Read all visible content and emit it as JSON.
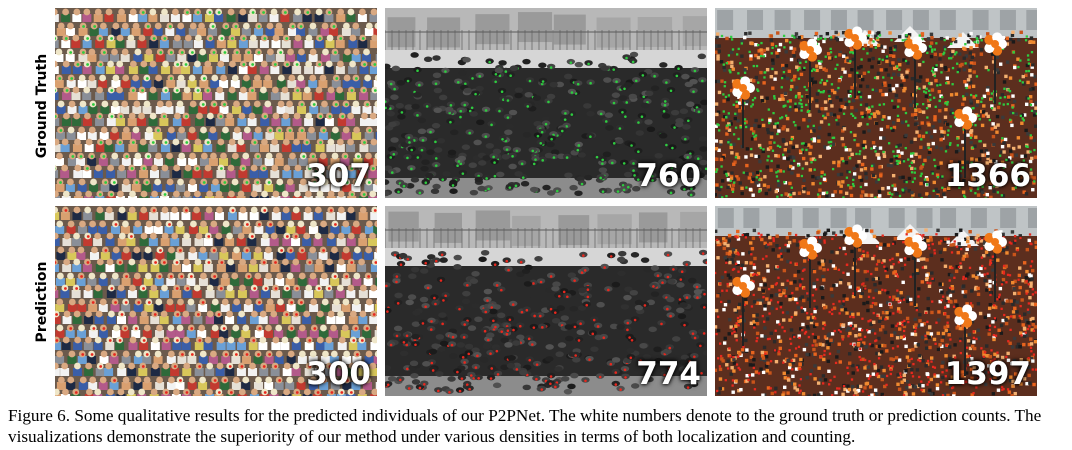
{
  "figure": {
    "rows": [
      {
        "label": "Ground Truth",
        "marker_color": "#2ecc40",
        "panels": [
          {
            "scene": "stadium-crowd",
            "count": "307"
          },
          {
            "scene": "historic-street-crowd",
            "count": "760"
          },
          {
            "scene": "parade-crowd-with-balloons",
            "count": "1366"
          }
        ]
      },
      {
        "label": "Prediction",
        "marker_color": "#e8281e",
        "panels": [
          {
            "scene": "stadium-crowd",
            "count": "300"
          },
          {
            "scene": "historic-street-crowd",
            "count": "774"
          },
          {
            "scene": "parade-crowd-with-balloons",
            "count": "1397"
          }
        ]
      }
    ],
    "caption": "Figure 6. Some qualitative results for the predicted individuals of our P2PNet. The white numbers denote to the ground truth or prediction counts. The visualizations demonstrate the superiority of our method under various densities in terms of both localization and counting."
  }
}
